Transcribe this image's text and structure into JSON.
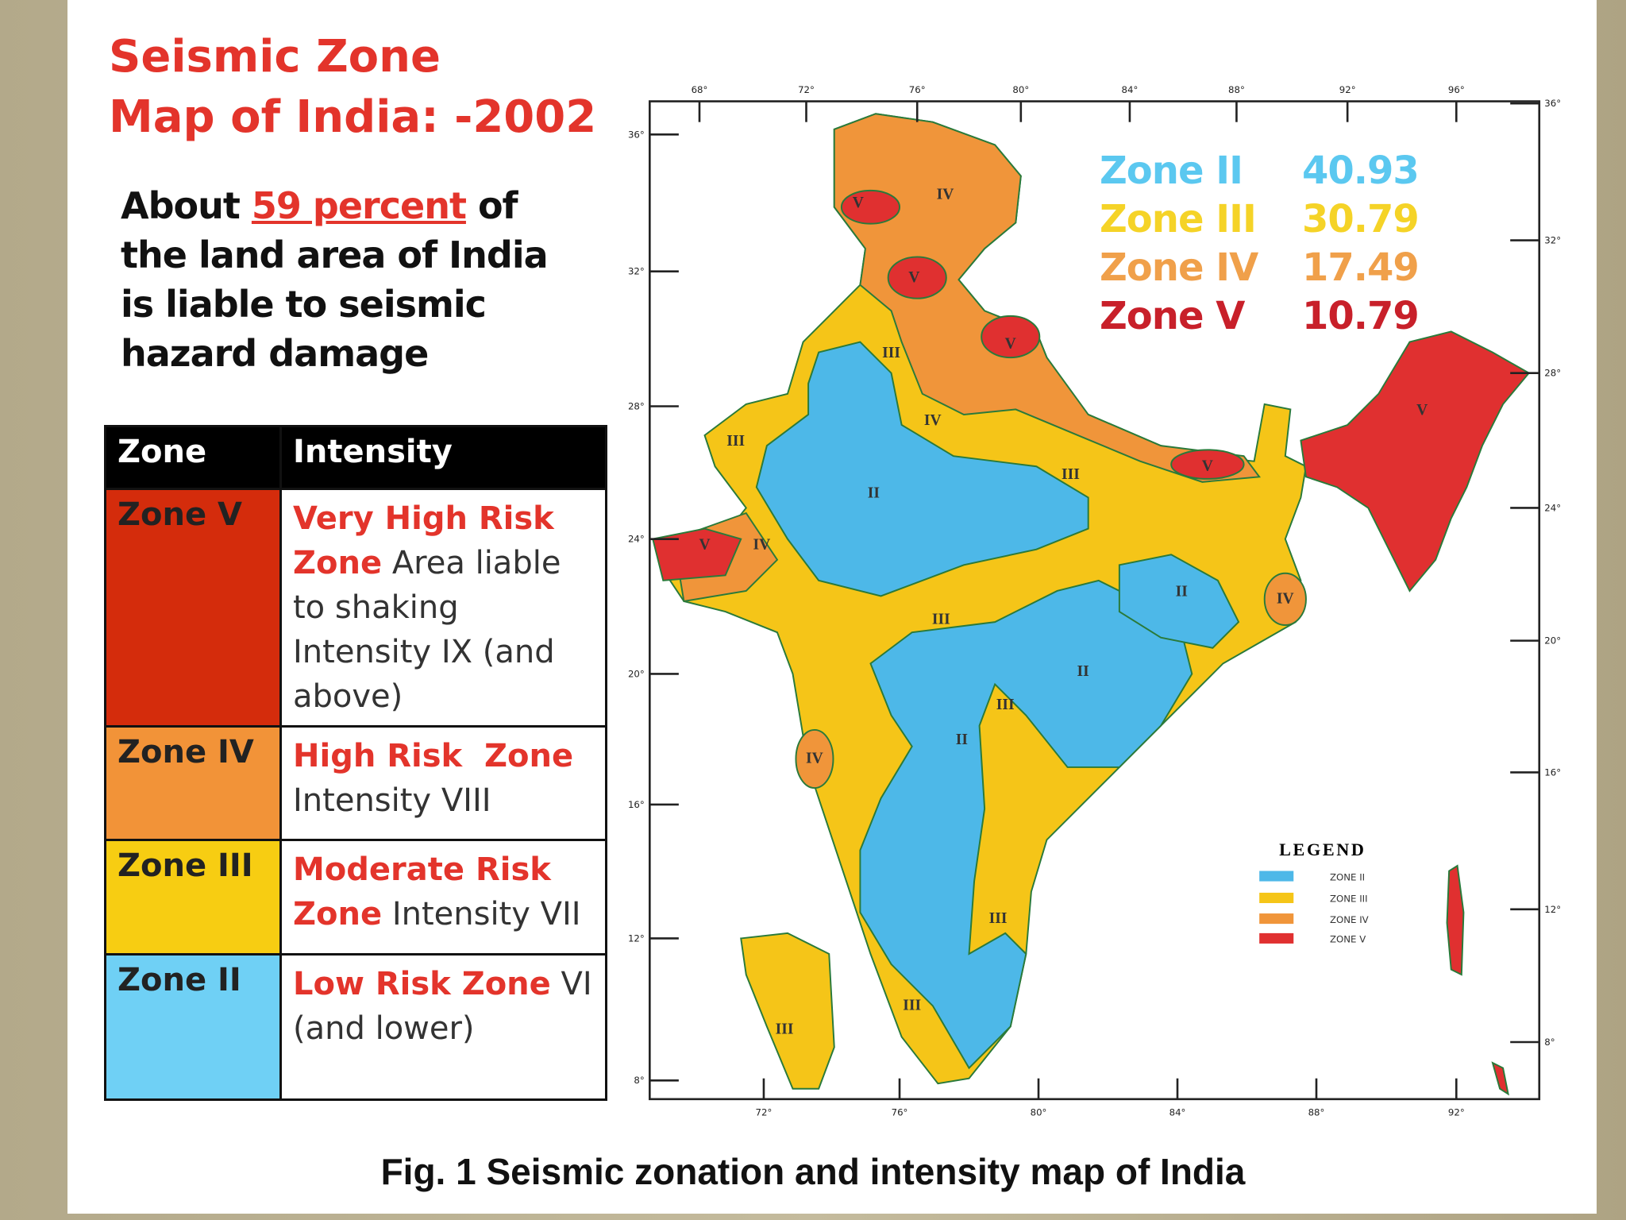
{
  "title": {
    "line1": "Seismic Zone",
    "line2": "Map of India: -2002"
  },
  "intro": {
    "before": "About",
    "highlight": "59 percent",
    "after": "of the land area of India is liable to seismic hazard damage"
  },
  "table": {
    "header": [
      "Zone",
      "Intensity"
    ],
    "rows": [
      {
        "zone": "Zone V",
        "risk": "Very High Risk Zone",
        "detail": "Area liable to shaking Intensity IX (and above)"
      },
      {
        "zone": "Zone IV",
        "risk": "High Risk  Zone",
        "detail": "Intensity VIII"
      },
      {
        "zone": "Zone III",
        "risk": "Moderate Risk Zone",
        "detail": "Intensity VII"
      },
      {
        "zone": "Zone II",
        "risk": "Low Risk Zone",
        "detail": "VI (and lower)"
      }
    ]
  },
  "map": {
    "stats": [
      {
        "zone": "Zone II",
        "value": "40.93"
      },
      {
        "zone": "Zone III",
        "value": "30.79"
      },
      {
        "zone": "Zone IV",
        "value": "17.49"
      },
      {
        "zone": "Zone V",
        "value": "10.79"
      }
    ],
    "legend": {
      "title": "LEGEND",
      "items": [
        "ZONE II",
        "ZONE III",
        "ZONE IV",
        "ZONE V"
      ]
    },
    "lon_top": [
      "68°",
      "72°",
      "76°",
      "80°",
      "84°",
      "88°",
      "92°",
      "96°"
    ],
    "lon_bottom": [
      "72°",
      "76°",
      "80°",
      "84°",
      "88°",
      "92°"
    ],
    "lat_left": [
      "36°",
      "32°",
      "28°",
      "24°",
      "20°",
      "16°",
      "12°",
      "8°"
    ],
    "lat_right": [
      "36°",
      "32°",
      "28°",
      "24°",
      "20°",
      "16°",
      "12°",
      "8°"
    ],
    "zone_labels": [
      "IV",
      "V",
      "V",
      "III",
      "V",
      "III",
      "IV",
      "II",
      "IV",
      "V",
      "III",
      "II",
      "III",
      "II",
      "II",
      "IV",
      "III",
      "III",
      "III",
      "III",
      "IV",
      "V",
      "V"
    ]
  },
  "caption": "Fig. 1 Seismic zonation and intensity map of India"
}
